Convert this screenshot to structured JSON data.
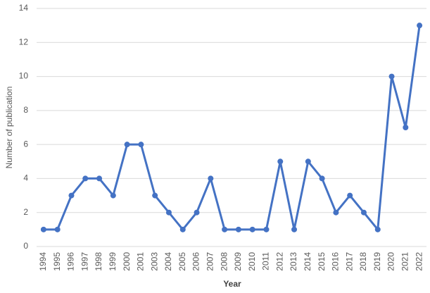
{
  "chart_data": {
    "type": "line",
    "x_label": "Year",
    "y_label": "Number of publication",
    "categories": [
      "1994",
      "1995",
      "1996",
      "1997",
      "1998",
      "1999",
      "2000",
      "2001",
      "2003",
      "2004",
      "2005",
      "2006",
      "2007",
      "2008",
      "2009",
      "2010",
      "2011",
      "2012",
      "2013",
      "2014",
      "2015",
      "2016",
      "2017",
      "2018",
      "2019",
      "2020",
      "2021",
      "2022"
    ],
    "values": [
      1,
      1,
      3,
      4,
      4,
      3,
      6,
      6,
      3,
      2,
      1,
      2,
      4,
      1,
      1,
      1,
      1,
      5,
      1,
      5,
      4,
      2,
      3,
      2,
      1,
      10,
      7,
      13
    ],
    "color": "#4472c4",
    "ylim": [
      0,
      14
    ],
    "yticks": [
      0,
      2,
      4,
      6,
      8,
      10,
      12,
      14
    ],
    "grid": true
  }
}
